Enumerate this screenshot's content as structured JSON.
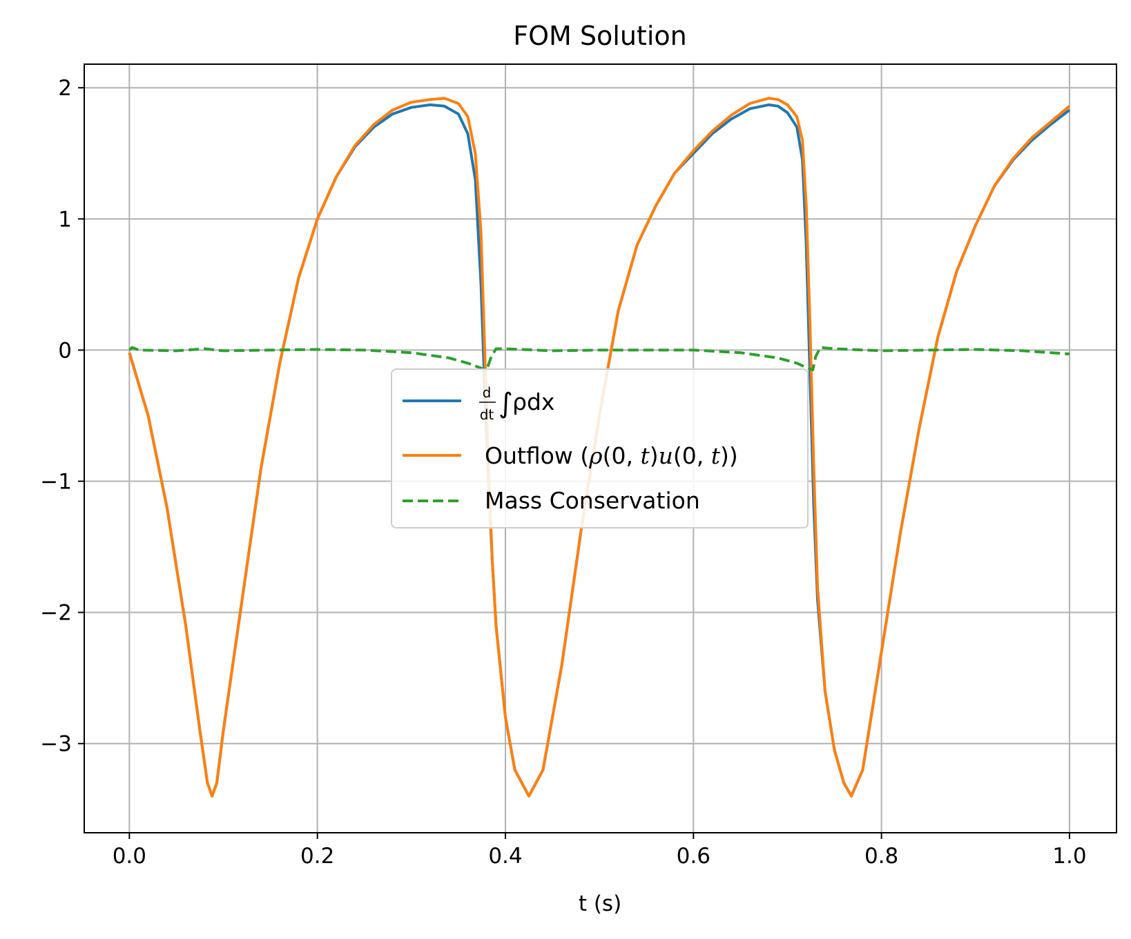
{
  "chart_data": {
    "type": "line",
    "title": "FOM Solution",
    "xlabel": "t (s)",
    "ylabel": "",
    "xlim": [
      -0.048,
      1.05
    ],
    "ylim": [
      -3.68,
      2.18
    ],
    "xticks": [
      0.0,
      0.2,
      0.4,
      0.6,
      0.8,
      1.0
    ],
    "xtick_labels": [
      "0.0",
      "0.2",
      "0.4",
      "0.6",
      "0.8",
      "1.0"
    ],
    "yticks": [
      2,
      1,
      0,
      -1,
      -2,
      -3
    ],
    "ytick_labels": [
      "2",
      "1",
      "0",
      "−1",
      "−2",
      "−3"
    ],
    "grid": true,
    "legend_position": "center",
    "series": [
      {
        "name": "d/dt ∫ρdx",
        "color": "#1f77b4",
        "style": "solid",
        "points": [
          [
            0.0,
            -0.02
          ],
          [
            0.02,
            -0.5
          ],
          [
            0.04,
            -1.2
          ],
          [
            0.06,
            -2.1
          ],
          [
            0.075,
            -2.9
          ],
          [
            0.083,
            -3.3
          ],
          [
            0.088,
            -3.4
          ],
          [
            0.093,
            -3.3
          ],
          [
            0.1,
            -2.9
          ],
          [
            0.12,
            -1.9
          ],
          [
            0.14,
            -0.9
          ],
          [
            0.16,
            -0.1
          ],
          [
            0.18,
            0.55
          ],
          [
            0.2,
            1.0
          ],
          [
            0.22,
            1.32
          ],
          [
            0.24,
            1.55
          ],
          [
            0.26,
            1.7
          ],
          [
            0.28,
            1.8
          ],
          [
            0.3,
            1.85
          ],
          [
            0.32,
            1.87
          ],
          [
            0.335,
            1.86
          ],
          [
            0.35,
            1.8
          ],
          [
            0.36,
            1.65
          ],
          [
            0.368,
            1.3
          ],
          [
            0.374,
            0.5
          ],
          [
            0.378,
            -0.3
          ],
          [
            0.382,
            -1.0
          ],
          [
            0.386,
            -1.6
          ],
          [
            0.39,
            -2.1
          ],
          [
            0.4,
            -2.8
          ],
          [
            0.41,
            -3.2
          ],
          [
            0.425,
            -3.4
          ],
          [
            0.44,
            -3.2
          ],
          [
            0.46,
            -2.4
          ],
          [
            0.48,
            -1.4
          ],
          [
            0.5,
            -0.5
          ],
          [
            0.52,
            0.3
          ],
          [
            0.54,
            0.8
          ],
          [
            0.56,
            1.1
          ],
          [
            0.58,
            1.35
          ],
          [
            0.6,
            1.5
          ],
          [
            0.62,
            1.65
          ],
          [
            0.64,
            1.76
          ],
          [
            0.66,
            1.84
          ],
          [
            0.68,
            1.87
          ],
          [
            0.69,
            1.86
          ],
          [
            0.7,
            1.81
          ],
          [
            0.71,
            1.7
          ],
          [
            0.716,
            1.45
          ],
          [
            0.72,
            0.8
          ],
          [
            0.724,
            -0.2
          ],
          [
            0.728,
            -1.2
          ],
          [
            0.732,
            -1.9
          ],
          [
            0.74,
            -2.6
          ],
          [
            0.75,
            -3.05
          ],
          [
            0.76,
            -3.3
          ],
          [
            0.768,
            -3.4
          ],
          [
            0.78,
            -3.2
          ],
          [
            0.8,
            -2.3
          ],
          [
            0.82,
            -1.4
          ],
          [
            0.84,
            -0.6
          ],
          [
            0.86,
            0.1
          ],
          [
            0.88,
            0.6
          ],
          [
            0.9,
            0.95
          ],
          [
            0.92,
            1.25
          ],
          [
            0.94,
            1.45
          ],
          [
            0.96,
            1.6
          ],
          [
            0.98,
            1.72
          ],
          [
            1.0,
            1.83
          ]
        ]
      },
      {
        "name": "Outflow (ρ(0,t)u(0,t))",
        "color": "#ff7f0e",
        "style": "solid",
        "points": [
          [
            0.0,
            -0.02
          ],
          [
            0.02,
            -0.5
          ],
          [
            0.04,
            -1.2
          ],
          [
            0.06,
            -2.1
          ],
          [
            0.075,
            -2.9
          ],
          [
            0.083,
            -3.3
          ],
          [
            0.088,
            -3.4
          ],
          [
            0.093,
            -3.3
          ],
          [
            0.1,
            -2.9
          ],
          [
            0.12,
            -1.9
          ],
          [
            0.14,
            -0.9
          ],
          [
            0.16,
            -0.1
          ],
          [
            0.18,
            0.55
          ],
          [
            0.2,
            1.0
          ],
          [
            0.22,
            1.32
          ],
          [
            0.24,
            1.56
          ],
          [
            0.26,
            1.72
          ],
          [
            0.28,
            1.83
          ],
          [
            0.3,
            1.89
          ],
          [
            0.32,
            1.91
          ],
          [
            0.335,
            1.92
          ],
          [
            0.35,
            1.88
          ],
          [
            0.36,
            1.78
          ],
          [
            0.368,
            1.5
          ],
          [
            0.374,
            0.9
          ],
          [
            0.378,
            0.0
          ],
          [
            0.382,
            -0.9
          ],
          [
            0.386,
            -1.6
          ],
          [
            0.39,
            -2.1
          ],
          [
            0.4,
            -2.8
          ],
          [
            0.41,
            -3.2
          ],
          [
            0.425,
            -3.4
          ],
          [
            0.44,
            -3.2
          ],
          [
            0.46,
            -2.4
          ],
          [
            0.48,
            -1.4
          ],
          [
            0.5,
            -0.5
          ],
          [
            0.52,
            0.3
          ],
          [
            0.54,
            0.8
          ],
          [
            0.56,
            1.1
          ],
          [
            0.58,
            1.35
          ],
          [
            0.6,
            1.52
          ],
          [
            0.62,
            1.67
          ],
          [
            0.64,
            1.79
          ],
          [
            0.66,
            1.88
          ],
          [
            0.68,
            1.92
          ],
          [
            0.69,
            1.91
          ],
          [
            0.7,
            1.87
          ],
          [
            0.71,
            1.78
          ],
          [
            0.716,
            1.6
          ],
          [
            0.72,
            1.1
          ],
          [
            0.724,
            0.2
          ],
          [
            0.728,
            -0.9
          ],
          [
            0.732,
            -1.8
          ],
          [
            0.74,
            -2.6
          ],
          [
            0.75,
            -3.05
          ],
          [
            0.76,
            -3.3
          ],
          [
            0.768,
            -3.4
          ],
          [
            0.78,
            -3.2
          ],
          [
            0.8,
            -2.3
          ],
          [
            0.82,
            -1.4
          ],
          [
            0.84,
            -0.6
          ],
          [
            0.86,
            0.1
          ],
          [
            0.88,
            0.6
          ],
          [
            0.9,
            0.95
          ],
          [
            0.92,
            1.25
          ],
          [
            0.94,
            1.46
          ],
          [
            0.96,
            1.62
          ],
          [
            0.98,
            1.74
          ],
          [
            1.0,
            1.86
          ]
        ]
      },
      {
        "name": "Mass Conservation",
        "color": "#2ca02c",
        "style": "dashed",
        "points": [
          [
            0.0,
            0.0
          ],
          [
            0.003,
            0.02
          ],
          [
            0.01,
            0.0
          ],
          [
            0.05,
            -0.005
          ],
          [
            0.08,
            0.01
          ],
          [
            0.1,
            -0.005
          ],
          [
            0.15,
            0.0
          ],
          [
            0.2,
            0.005
          ],
          [
            0.25,
            0.0
          ],
          [
            0.3,
            -0.02
          ],
          [
            0.34,
            -0.06
          ],
          [
            0.36,
            -0.1
          ],
          [
            0.375,
            -0.14
          ],
          [
            0.38,
            -0.15
          ],
          [
            0.385,
            -0.05
          ],
          [
            0.39,
            0.01
          ],
          [
            0.4,
            0.01
          ],
          [
            0.45,
            -0.005
          ],
          [
            0.5,
            0.0
          ],
          [
            0.6,
            0.0
          ],
          [
            0.65,
            -0.02
          ],
          [
            0.69,
            -0.06
          ],
          [
            0.71,
            -0.1
          ],
          [
            0.722,
            -0.14
          ],
          [
            0.727,
            -0.15
          ],
          [
            0.73,
            -0.05
          ],
          [
            0.735,
            0.02
          ],
          [
            0.75,
            0.01
          ],
          [
            0.8,
            -0.005
          ],
          [
            0.85,
            0.0
          ],
          [
            0.9,
            0.005
          ],
          [
            0.95,
            -0.005
          ],
          [
            1.0,
            -0.03
          ]
        ]
      }
    ]
  }
}
